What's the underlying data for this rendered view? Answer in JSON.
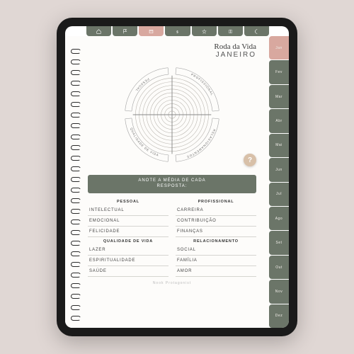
{
  "header": {
    "script_title": "Roda da Vida",
    "month": "JANEIRO"
  },
  "wheel": {
    "rings": 10,
    "stroke": "#b8b4ad",
    "cross_stroke": "#888",
    "quadrants": [
      "PESSOAL",
      "PROFISSIONAL",
      "QUALIDADE DE VIDA",
      "RELACIONAMENTOS"
    ]
  },
  "help_icon": "?",
  "banner": "ANOTE A MÉDIA DE CADA\nRESPOSTA:",
  "sections": [
    {
      "left_head": "PESSOAL",
      "right_head": "PROFISSIONAL",
      "rows": [
        [
          "INTELECTUAL",
          "CARREIRA"
        ],
        [
          "EMOCIONAL",
          "CONTRIBUIÇÃO"
        ],
        [
          "FELICIDADE",
          "FINANÇAS"
        ]
      ]
    },
    {
      "left_head": "QUALIDADE DE VIDA",
      "right_head": "RELACIONAMENTO",
      "rows": [
        [
          "LAZER",
          "SOCIAL"
        ],
        [
          "ESPIRITUALIDADE",
          "FAMÍLIA"
        ],
        [
          "SAÚDE",
          "AMOR"
        ]
      ]
    }
  ],
  "footer": "Nook Protagonist",
  "side_tabs": [
    "Jan",
    "Fev",
    "Mar",
    "Abr",
    "Mai",
    "Jun",
    "Jul",
    "Ago",
    "Set",
    "Out",
    "Nov",
    "Dez"
  ],
  "side_active_index": 0,
  "colors": {
    "olive": "#6b7568",
    "pink": "#d8a89f",
    "tan": "#d8c0a8",
    "page": "#fdfcfa",
    "bg": "#e0d7d4"
  }
}
